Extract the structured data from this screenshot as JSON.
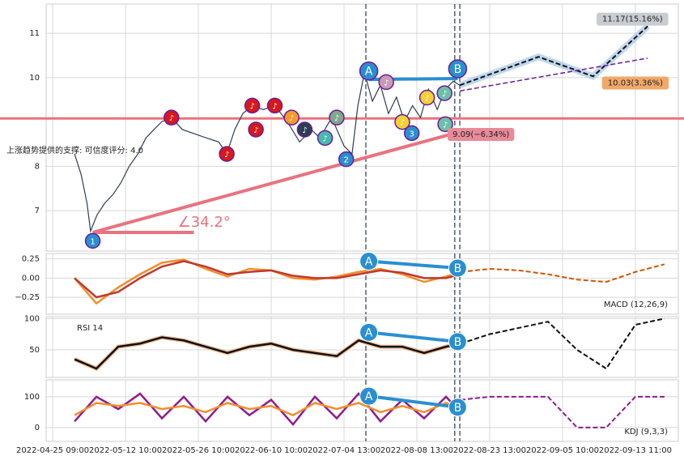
{
  "chart_data": [
    {
      "type": "line",
      "panel": "price",
      "ylim": [
        6.09,
        11.66
      ],
      "yticks": [
        7,
        8,
        10,
        11
      ],
      "xlim": [
        -0.9,
        85.9
      ],
      "xticks": [
        {
          "value": 0,
          "label": "2022-04-25 09:00"
        },
        {
          "value": 10,
          "label": "2022-05-12 10:00"
        },
        {
          "value": 20,
          "label": "2022-05-26 10:00"
        },
        {
          "value": 30,
          "label": "2022-06-10 10:00"
        },
        {
          "value": 40,
          "label": "2022-07-04 13:00"
        },
        {
          "value": 50,
          "label": "2022-08-08 13:00"
        },
        {
          "value": 60,
          "label": "2022-08-23 13:00"
        },
        {
          "value": 70,
          "label": "2022-09-05 10:00"
        },
        {
          "value": 80,
          "label": "2022-09-13 11:00"
        }
      ],
      "vlines": [
        43.0,
        55.2,
        55.9
      ],
      "series": [
        {
          "color": "#2d3e50",
          "x": [
            3.0,
            3.9,
            4.7,
            5.2,
            6.1,
            7.2,
            8.3,
            9.4,
            10.5,
            11.7,
            12.8,
            13.9,
            15.0,
            16.3,
            17.8,
            19.4,
            21.1,
            22.8,
            23.9,
            25.0,
            26.1,
            27.4,
            28.9,
            30.5,
            32.2,
            33.9,
            35.5,
            36.7,
            38.3,
            40.0,
            41.1,
            41.9,
            42.8,
            43.9,
            45.0,
            46.1,
            47.2,
            48.3,
            49.4,
            50.5,
            51.6,
            52.8,
            53.9,
            55.0,
            55.9
          ],
          "values": [
            8.28,
            7.82,
            7.18,
            6.54,
            6.91,
            7.18,
            7.37,
            7.64,
            8.0,
            8.28,
            8.64,
            8.83,
            9.01,
            9.1,
            8.83,
            8.74,
            8.64,
            8.55,
            8.28,
            8.83,
            9.19,
            9.37,
            9.28,
            9.37,
            9.01,
            8.55,
            8.83,
            8.64,
            9.1,
            8.46,
            8.28,
            9.37,
            10.11,
            9.47,
            9.83,
            9.19,
            9.56,
            9.01,
            9.37,
            9.1,
            9.74,
            9.28,
            9.74,
            9.92,
            9.83
          ]
        },
        {
          "color": "#111111",
          "dash": true,
          "x": [
            55.9,
            66.7,
            74.2,
            81.7
          ],
          "values": [
            9.83,
            10.47,
            10.03,
            11.16
          ]
        }
      ],
      "support_line": {
        "value": 9.08,
        "color": "#e8737f"
      },
      "trend_line": {
        "x": [
          5.5,
          55.0
        ],
        "values": [
          6.51,
          8.74
        ],
        "color": "#e8737f"
      },
      "purple_line": {
        "x": [
          55.9,
          81.7
        ],
        "values": [
          9.7,
          10.44
        ],
        "color": "#6a1b9a"
      },
      "ab_line": {
        "x": [
          43.4,
          55.6
        ],
        "values": [
          9.96,
          9.98
        ],
        "color": "#2a8fd0"
      },
      "markers": [
        {
          "label": "1",
          "x": 5.5,
          "y": 6.32,
          "color": "#2a8fd0"
        },
        {
          "label": "2",
          "x": 40.3,
          "y": 8.16,
          "color": "#2a8fd0"
        },
        {
          "label": "3",
          "x": 49.3,
          "y": 8.75,
          "color": "#2a8fd0"
        },
        {
          "label": "A",
          "x": 43.4,
          "y": 10.15,
          "color": "#2a8fd0"
        },
        {
          "label": "B",
          "x": 55.6,
          "y": 10.2,
          "color": "#2a8fd0"
        },
        {
          "label": "♪",
          "x": 16.3,
          "y": 9.1,
          "color": "#d7191c"
        },
        {
          "label": "♪",
          "x": 23.9,
          "y": 8.28,
          "color": "#d7191c"
        },
        {
          "label": "♪",
          "x": 27.4,
          "y": 9.37,
          "color": "#d7191c"
        },
        {
          "label": "♪",
          "x": 27.9,
          "y": 8.83,
          "color": "#d7191c"
        },
        {
          "label": "♪",
          "x": 30.5,
          "y": 9.37,
          "color": "#d7191c"
        },
        {
          "label": "♪",
          "x": 32.8,
          "y": 9.1,
          "color": "#f59b2b"
        },
        {
          "label": "♪",
          "x": 34.6,
          "y": 8.83,
          "color": "#2d3e50"
        },
        {
          "label": "♪",
          "x": 37.4,
          "y": 8.64,
          "color": "#48b8b0"
        },
        {
          "label": "♪",
          "x": 39.0,
          "y": 9.1,
          "color": "#7fa88a"
        },
        {
          "label": "♪",
          "x": 45.8,
          "y": 9.9,
          "color": "#c99ab5"
        },
        {
          "label": "♪",
          "x": 48.0,
          "y": 9.0,
          "color": "#f5d033"
        },
        {
          "label": "♪",
          "x": 51.4,
          "y": 9.55,
          "color": "#f5d033"
        },
        {
          "label": "♪",
          "x": 53.8,
          "y": 9.65,
          "color": "#6cc0a8"
        },
        {
          "label": "♪",
          "x": 53.9,
          "y": 8.95,
          "color": "#6cc0a8"
        }
      ],
      "annotations": [
        {
          "text": "11.17(15.16%)",
          "x": 79.6,
          "y": 11.32,
          "color": "#c8cdd2"
        },
        {
          "text": "10.03(3.36%)",
          "x": 80.0,
          "y": 9.88,
          "color": "#f0a96a"
        },
        {
          "text": "9.09(−6.34%)",
          "x": 58.8,
          "y": 8.72,
          "color": "#e88a9a"
        }
      ],
      "angle_label": "∠34.2°",
      "support_text": "上涨趋势提供的支撑: 可信度评分: 4.0"
    },
    {
      "type": "line",
      "panel": "macd",
      "label": "MACD (12,26,9)",
      "ylim": [
        -0.47,
        0.32
      ],
      "yticks": [
        {
          "value": 0.25,
          "label": "0.25"
        },
        {
          "value": 0,
          "label": "0.00"
        },
        {
          "value": -0.25,
          "label": "−0.25"
        }
      ],
      "series": [
        {
          "color": "#f28e2b",
          "x": [
            3,
            6,
            9,
            12,
            15,
            18,
            21,
            24,
            27,
            30,
            33,
            36,
            39,
            42,
            45,
            48,
            51,
            54,
            56
          ],
          "values": [
            0,
            -0.33,
            -0.12,
            0.05,
            0.2,
            0.24,
            0.12,
            0.02,
            0.12,
            0.1,
            0.0,
            -0.02,
            0.02,
            0.08,
            0.12,
            0.05,
            -0.05,
            0.02,
            0.08
          ]
        },
        {
          "color": "#c0392b",
          "x": [
            3,
            6,
            9,
            12,
            15,
            18,
            21,
            24,
            27,
            30,
            33,
            36,
            39,
            42,
            45,
            48,
            51,
            54,
            56
          ],
          "values": [
            0,
            -0.25,
            -0.18,
            0,
            0.15,
            0.22,
            0.15,
            0.05,
            0.08,
            0.1,
            0.03,
            0,
            0,
            0.05,
            0.1,
            0.07,
            0,
            0,
            0.05
          ]
        },
        {
          "color": "#d35400",
          "dash": true,
          "x": [
            56,
            60,
            64,
            68,
            72,
            76,
            80,
            84
          ],
          "values": [
            0.08,
            0.12,
            0.1,
            0.05,
            -0.02,
            -0.05,
            0.08,
            0.18
          ]
        }
      ],
      "ab_line": {
        "x": [
          43.4,
          55.6
        ],
        "values": [
          0.22,
          0.13
        ],
        "color": "#2a8fd0"
      }
    },
    {
      "type": "line",
      "panel": "rsi",
      "label": "RSI 14",
      "ylim": [
        6,
        103
      ],
      "yticks": [
        50,
        100
      ],
      "series": [
        {
          "color": "#111111",
          "x": [
            3,
            6,
            9,
            12,
            15,
            18,
            21,
            24,
            27,
            30,
            33,
            36,
            39,
            42,
            45,
            48,
            51,
            54,
            56
          ],
          "values": [
            35,
            20,
            55,
            60,
            70,
            65,
            55,
            45,
            55,
            60,
            50,
            45,
            40,
            65,
            55,
            55,
            45,
            55,
            60
          ]
        },
        {
          "color": "#111111",
          "dash": true,
          "x": [
            56,
            60,
            64,
            68,
            72,
            76,
            80,
            84
          ],
          "values": [
            60,
            75,
            85,
            95,
            50,
            20,
            90,
            100
          ]
        }
      ],
      "ab_line": {
        "x": [
          43.4,
          55.6
        ],
        "values": [
          78,
          63
        ],
        "color": "#2a8fd0"
      }
    },
    {
      "type": "line",
      "panel": "kdj",
      "label": "KDJ (9,3,3)",
      "ylim": [
        -45,
        155
      ],
      "yticks": [
        0,
        100
      ],
      "series": [
        {
          "color": "#8e1b8e",
          "x": [
            3,
            6,
            9,
            12,
            15,
            18,
            21,
            24,
            27,
            30,
            33,
            36,
            39,
            42,
            45,
            48,
            51,
            54,
            56
          ],
          "values": [
            20,
            100,
            60,
            110,
            30,
            100,
            20,
            100,
            40,
            90,
            10,
            100,
            30,
            110,
            20,
            90,
            30,
            100,
            50
          ]
        },
        {
          "color": "#f28e2b",
          "x": [
            3,
            6,
            9,
            12,
            15,
            18,
            21,
            24,
            27,
            30,
            33,
            36,
            39,
            42,
            45,
            48,
            51,
            54,
            56
          ],
          "values": [
            40,
            80,
            70,
            80,
            60,
            70,
            50,
            80,
            60,
            70,
            40,
            80,
            60,
            80,
            50,
            70,
            50,
            80,
            60
          ]
        },
        {
          "color": "#8e1b8e",
          "dash": true,
          "x": [
            56,
            60,
            64,
            68,
            72,
            76,
            80,
            84
          ],
          "values": [
            90,
            100,
            100,
            100,
            0,
            0,
            100,
            100
          ]
        }
      ],
      "ab_line": {
        "x": [
          43.4,
          55.6
        ],
        "values": [
          102,
          66
        ],
        "color": "#2a8fd0"
      }
    }
  ]
}
